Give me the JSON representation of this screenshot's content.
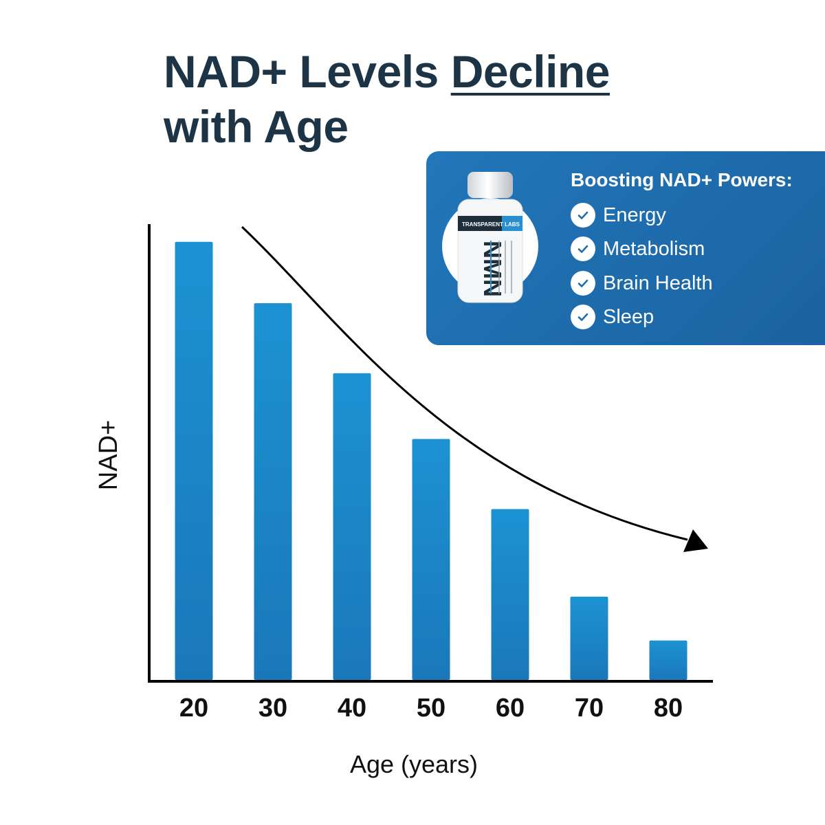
{
  "headline": {
    "text": "NAD+ Levels ",
    "accent": "Decline",
    "line2": "with Age"
  },
  "chart_data": {
    "type": "bar",
    "title": "NAD+ Levels Decline with Age",
    "xlabel": "Age (years)",
    "ylabel": "NAD+",
    "categories": [
      "20",
      "30",
      "40",
      "50",
      "60",
      "70",
      "80"
    ],
    "values": [
      100,
      86,
      70,
      55,
      39,
      19,
      9
    ],
    "ylim": [
      0,
      110
    ],
    "grid": false,
    "legend": "none",
    "annotations": [
      "downward trend arrow"
    ],
    "bar_color": "#1b86c8",
    "axis_color": "#000000"
  },
  "callout": {
    "title": "Boosting NAD+ Powers:",
    "items": [
      {
        "label": "Energy",
        "icon": "check-circle-icon"
      },
      {
        "label": "Metabolism",
        "icon": "check-circle-icon"
      },
      {
        "label": "Brain Health",
        "icon": "check-circle-icon"
      },
      {
        "label": "Sleep",
        "icon": "check-circle-icon"
      }
    ],
    "product": {
      "brand": "TRANSPARENT LABS",
      "series": "WELLNESS SERIES",
      "name": "NMN",
      "subtitle": "NAD+ Precursor and Cellular Energy Support*",
      "claims": [
        "PROMOTES NAD+ LEVELS LINKED TO HEALTHY AGING*",
        "ENHANCES MITOCHONDRIAL FUNCTION & ENERGY METABOLISM*",
        "SUPPORTS COGNITIVE HEALTH & PHYSICAL VITALITY*"
      ]
    },
    "colors": {
      "panel": "#1f6fb0",
      "text": "#ffffff",
      "check": "#1f6fb0"
    }
  }
}
